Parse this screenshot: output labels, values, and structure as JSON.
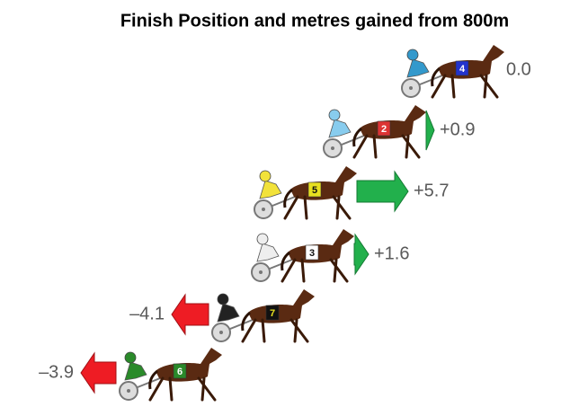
{
  "chart_data": {
    "type": "arrow",
    "title": "Finish Position and metres gained from 800m",
    "categories": [
      "4",
      "2",
      "5",
      "3",
      "7",
      "6"
    ],
    "values": [
      0,
      0.9,
      5.7,
      1.6,
      -4.1,
      -3.9
    ],
    "value_labels": [
      "0.0",
      "+0.9",
      "+5.7",
      "+1.6",
      "–4.1",
      "–3.9"
    ],
    "saddle_colors": [
      "#2233cc",
      "#dd3333",
      "#e8e020",
      "#ffffff",
      "#111111",
      "#2a8a2a"
    ],
    "driver_colors": [
      "#3399cc",
      "#88ccee",
      "#f2e23a",
      "#eeeeee",
      "#222222",
      "#2a8a2a"
    ],
    "positive_color": "#22b04c",
    "negative_color": "#ee1c24"
  }
}
